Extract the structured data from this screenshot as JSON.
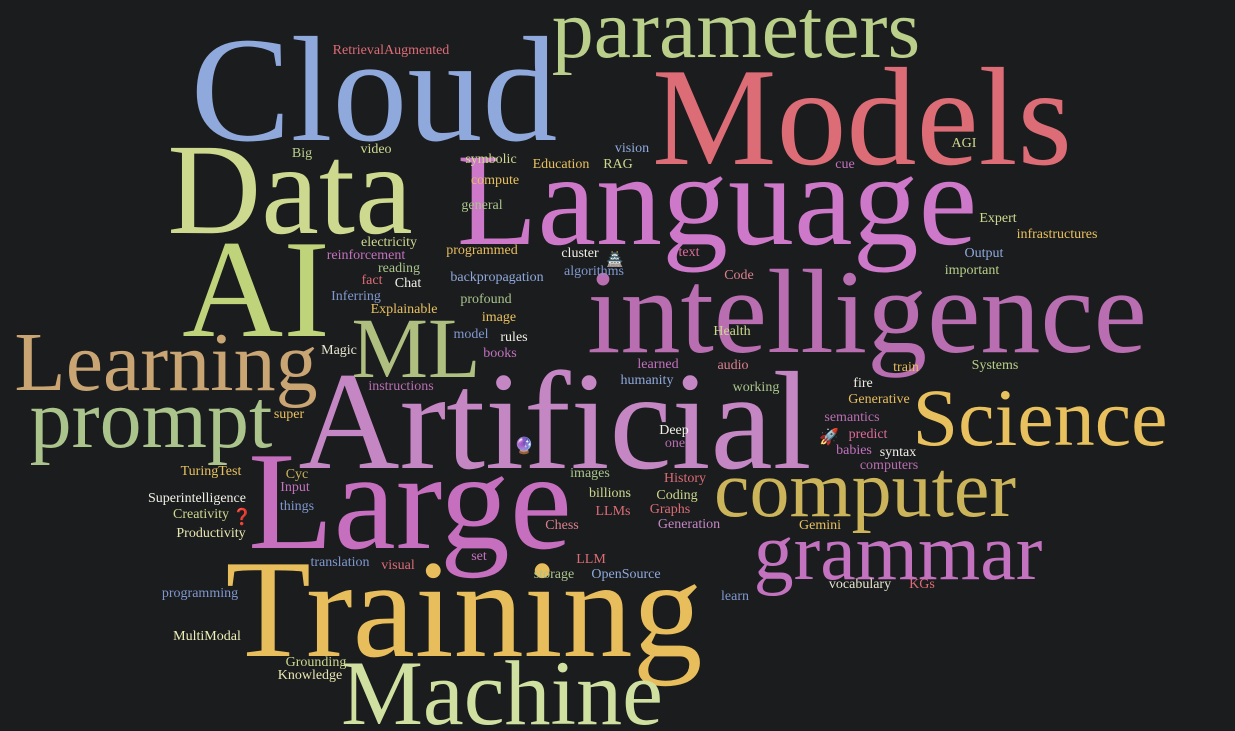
{
  "words": [
    {
      "text": "parameters",
      "color": "#b9cf8a"
    },
    {
      "text": "Cloud",
      "color": "#8fa9dc"
    },
    {
      "text": "Models",
      "color": "#dc6c76"
    },
    {
      "text": "Data",
      "color": "#cdd98f"
    },
    {
      "text": "Language",
      "color": "#cd78c8"
    },
    {
      "text": "AI",
      "color": "#bfd37a"
    },
    {
      "text": "intelligence",
      "color": "#b86eb0"
    },
    {
      "text": "ML",
      "color": "#aebf80"
    },
    {
      "text": "Learning",
      "color": "#c9a574"
    },
    {
      "text": "prompt",
      "color": "#aac48c"
    },
    {
      "text": "Artificial",
      "color": "#c487c4"
    },
    {
      "text": "Science",
      "color": "#e8c15e"
    },
    {
      "text": "computer",
      "color": "#cbb45a"
    },
    {
      "text": "Large",
      "color": "#c66fbf"
    },
    {
      "text": "grammar",
      "color": "#c372bf"
    },
    {
      "text": "Training",
      "color": "#e8bd5c"
    },
    {
      "text": "Machine",
      "color": "#cfe0a0"
    },
    {
      "text": "RetrievalAugmented",
      "color": "#dc6c76"
    },
    {
      "text": "Big",
      "color": "#b9cf8a"
    },
    {
      "text": "video",
      "color": "#cdd98f"
    },
    {
      "text": "vision",
      "color": "#8fa9dc"
    },
    {
      "text": "symbolic",
      "color": "#cdd98f"
    },
    {
      "text": "Education",
      "color": "#e8c15e"
    },
    {
      "text": "RAG",
      "color": "#cdd98f"
    },
    {
      "text": "cue",
      "color": "#c372bf"
    },
    {
      "text": "AGI",
      "color": "#cdd98f"
    },
    {
      "text": "compute",
      "color": "#e8c15e"
    },
    {
      "text": "general",
      "color": "#aac48c"
    },
    {
      "text": "Expert",
      "color": "#cdd98f"
    },
    {
      "text": "infrastructures",
      "color": "#e8c15e"
    },
    {
      "text": "electricity",
      "color": "#cdd98f"
    },
    {
      "text": "reinforcement",
      "color": "#c372bf"
    },
    {
      "text": "programmed",
      "color": "#e8bd5c"
    },
    {
      "text": "cluster",
      "color": "#f0f0e6"
    },
    {
      "text": "🏯",
      "color": "#ffffff"
    },
    {
      "text": "text",
      "color": "#dc6c9a"
    },
    {
      "text": "Output",
      "color": "#8fa9dc"
    },
    {
      "text": "reading",
      "color": "#aac48c"
    },
    {
      "text": "fact",
      "color": "#dc6c76"
    },
    {
      "text": "Chat",
      "color": "#f0f0e6"
    },
    {
      "text": "backpropagation",
      "color": "#8fa9dc"
    },
    {
      "text": "algorithms",
      "color": "#7f98cf"
    },
    {
      "text": "Code",
      "color": "#dc8090"
    },
    {
      "text": "important",
      "color": "#b9cf8a"
    },
    {
      "text": "Inferring",
      "color": "#7f98cf"
    },
    {
      "text": "profound",
      "color": "#aac48c"
    },
    {
      "text": "Explainable",
      "color": "#e8c15e"
    },
    {
      "text": "image",
      "color": "#e8c15e"
    },
    {
      "text": "model",
      "color": "#7f98cf"
    },
    {
      "text": "rules",
      "color": "#f0f0e6"
    },
    {
      "text": "Health",
      "color": "#cdd98f"
    },
    {
      "text": "Magic",
      "color": "#e8e6d0"
    },
    {
      "text": "books",
      "color": "#c372bf"
    },
    {
      "text": "learned",
      "color": "#c372bf"
    },
    {
      "text": "audio",
      "color": "#dc8090"
    },
    {
      "text": "train",
      "color": "#e8bd5c"
    },
    {
      "text": "Systems",
      "color": "#b9cf8a"
    },
    {
      "text": "instructions",
      "color": "#b86eb0"
    },
    {
      "text": "humanity",
      "color": "#8fa9dc"
    },
    {
      "text": "working",
      "color": "#aac48c"
    },
    {
      "text": "fire",
      "color": "#f0f0e6"
    },
    {
      "text": "Generative",
      "color": "#e8bd5c"
    },
    {
      "text": "super",
      "color": "#e8c15e"
    },
    {
      "text": "semantics",
      "color": "#b86eb0"
    },
    {
      "text": "Deep",
      "color": "#f0f0e6"
    },
    {
      "text": "🔮",
      "color": "#9a6cd0"
    },
    {
      "text": "one",
      "color": "#b86eb0"
    },
    {
      "text": "🚀",
      "color": "#dddddd"
    },
    {
      "text": "predict",
      "color": "#dc6c9a"
    },
    {
      "text": "babies",
      "color": "#c372bf"
    },
    {
      "text": "syntax",
      "color": "#f0f0e6"
    },
    {
      "text": "computers",
      "color": "#b86eb0"
    },
    {
      "text": "TuringTest",
      "color": "#e8c15e"
    },
    {
      "text": "Cyc",
      "color": "#cbb45a"
    },
    {
      "text": "images",
      "color": "#aac48c"
    },
    {
      "text": "History",
      "color": "#dc6c76"
    },
    {
      "text": "Input",
      "color": "#c372bf"
    },
    {
      "text": "billions",
      "color": "#cdd98f"
    },
    {
      "text": "Coding",
      "color": "#cdd98f"
    },
    {
      "text": "Superintelligence",
      "color": "#f0f0e6"
    },
    {
      "text": "things",
      "color": "#7f98cf"
    },
    {
      "text": "LLMs",
      "color": "#dc6c76"
    },
    {
      "text": "Graphs",
      "color": "#dc6c76"
    },
    {
      "text": "Creativity",
      "color": "#cdd98f"
    },
    {
      "text": "❓",
      "color": "#dc4040"
    },
    {
      "text": "Chess",
      "color": "#dc8090"
    },
    {
      "text": "Generation",
      "color": "#c487c4"
    },
    {
      "text": "Gemini",
      "color": "#e8c15e"
    },
    {
      "text": "Productivity",
      "color": "#e8e6b0"
    },
    {
      "text": "set",
      "color": "#c372bf"
    },
    {
      "text": "LLM",
      "color": "#dc6c76"
    },
    {
      "text": "translation",
      "color": "#7f98cf"
    },
    {
      "text": "visual",
      "color": "#dc6c76"
    },
    {
      "text": "storage",
      "color": "#aac48c"
    },
    {
      "text": "OpenSource",
      "color": "#8fa9dc"
    },
    {
      "text": "vocabulary",
      "color": "#e8e6d0"
    },
    {
      "text": "KGs",
      "color": "#dc6c76"
    },
    {
      "text": "programming",
      "color": "#7f98cf"
    },
    {
      "text": "learn",
      "color": "#7f98cf"
    },
    {
      "text": "MultiModal",
      "color": "#f0f0b8"
    },
    {
      "text": "Grounding",
      "color": "#cdd98f"
    },
    {
      "text": "Knowledge",
      "color": "#e8e6b0"
    }
  ]
}
